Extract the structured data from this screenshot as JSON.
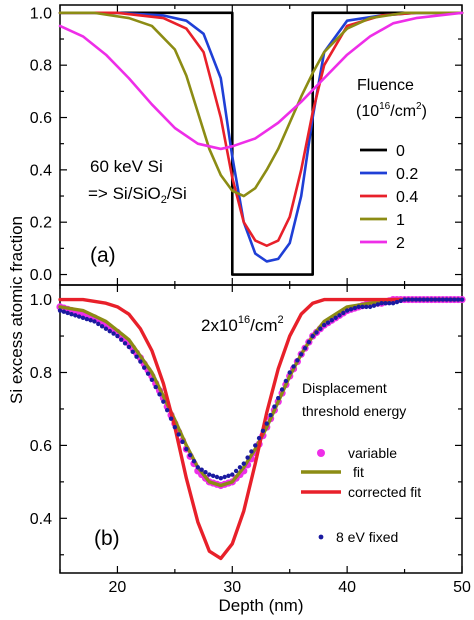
{
  "figure": {
    "ylabel": "Si excess atomic fraction",
    "xlabel": "Depth (nm)",
    "x_ticks": [
      "20",
      "30",
      "40",
      "50"
    ]
  },
  "panel_a": {
    "label": "(a)",
    "annotation_line1": "60 keV Si",
    "annotation_line2": "=> Si/SiO",
    "annotation_line2_sub": "2",
    "annotation_line2_end": "/Si",
    "legend_title": "Fluence",
    "legend_unit_pre": "(10",
    "legend_unit_sup": "16",
    "legend_unit_mid": "/cm",
    "legend_unit_sup2": "2",
    "legend_unit_end": ")",
    "y_ticks": [
      "0.0",
      "0.2",
      "0.4",
      "0.6",
      "0.8",
      "1.0"
    ]
  },
  "panel_b": {
    "label": "(b)",
    "annotation_pre": "2x10",
    "annotation_sup": "16",
    "annotation_mid": "/cm",
    "annotation_sup2": "2",
    "legend_title_line1": "Displacement",
    "legend_title_line2": "threshold energy",
    "y_ticks": [
      "0.4",
      "0.6",
      "0.8",
      "1.0"
    ]
  },
  "colors": {
    "black": "#000000",
    "blue": "#1f3fd6",
    "red": "#e8202a",
    "olive": "#8c8c14",
    "magenta": "#ee2ee8",
    "dots": "#1a1aa0"
  },
  "chart_data": [
    {
      "type": "line",
      "panel": "a",
      "xlim": [
        15,
        50
      ],
      "ylim": [
        -0.04,
        1.03
      ],
      "x_ticks": [
        20,
        30,
        40,
        50
      ],
      "y_ticks": [
        0.0,
        0.2,
        0.4,
        0.6,
        0.8,
        1.0
      ],
      "legend_placement": "right",
      "series": [
        {
          "name": "0",
          "color": "#000000",
          "x": [
            15,
            30.0,
            30.0,
            37.0,
            37.0,
            50
          ],
          "y": [
            1.0,
            1.0,
            0.0,
            0.0,
            1.0,
            1.0
          ]
        },
        {
          "name": "0.2",
          "color": "#1f3fd6",
          "x": [
            15,
            20,
            24,
            26,
            27.5,
            29,
            30,
            31,
            32,
            33,
            34,
            35,
            36,
            37,
            38,
            40,
            43,
            46,
            50
          ],
          "y": [
            1.0,
            1.0,
            0.99,
            0.97,
            0.92,
            0.75,
            0.45,
            0.2,
            0.08,
            0.05,
            0.06,
            0.12,
            0.3,
            0.6,
            0.85,
            0.97,
            0.99,
            1.0,
            1.0
          ]
        },
        {
          "name": "0.4",
          "color": "#e8202a",
          "x": [
            15,
            20,
            24,
            26,
            27.5,
            29,
            30,
            31,
            32,
            33,
            34,
            35,
            36,
            37,
            38,
            40,
            43,
            46,
            50
          ],
          "y": [
            1.0,
            1.0,
            0.98,
            0.94,
            0.85,
            0.6,
            0.37,
            0.2,
            0.13,
            0.11,
            0.13,
            0.22,
            0.4,
            0.62,
            0.8,
            0.95,
            0.99,
            1.0,
            1.0
          ]
        },
        {
          "name": "1",
          "color": "#8c8c14",
          "x": [
            15,
            18,
            21,
            23,
            25,
            26,
            27,
            28,
            29,
            30,
            31,
            32,
            33,
            34,
            35,
            36,
            37,
            38,
            40,
            42,
            45,
            50
          ],
          "y": [
            1.0,
            1.0,
            0.98,
            0.95,
            0.86,
            0.76,
            0.62,
            0.48,
            0.38,
            0.32,
            0.3,
            0.33,
            0.4,
            0.48,
            0.58,
            0.68,
            0.77,
            0.85,
            0.94,
            0.98,
            1.0,
            1.0
          ]
        },
        {
          "name": "2",
          "color": "#ee2ee8",
          "x": [
            15,
            17,
            19,
            21,
            23,
            25,
            27,
            28,
            29,
            30,
            32,
            34,
            36,
            38,
            40,
            42,
            44,
            46,
            48,
            50
          ],
          "y": [
            0.95,
            0.91,
            0.84,
            0.75,
            0.65,
            0.56,
            0.5,
            0.49,
            0.48,
            0.49,
            0.52,
            0.58,
            0.66,
            0.75,
            0.84,
            0.91,
            0.96,
            0.98,
            0.99,
            1.0
          ]
        }
      ]
    },
    {
      "type": "line",
      "panel": "b",
      "xlim": [
        15,
        50
      ],
      "ylim": [
        0.25,
        1.04
      ],
      "x_ticks": [
        20,
        30,
        40,
        50
      ],
      "y_ticks": [
        0.4,
        0.6,
        0.8,
        1.0
      ],
      "legend_placement": "right",
      "series": [
        {
          "name": "variable",
          "kind": "points",
          "color": "#ee2ee8",
          "x": [
            15,
            16,
            17,
            18,
            19,
            20,
            21,
            22,
            23,
            24,
            25,
            26,
            27,
            28,
            29,
            30,
            31,
            32,
            33,
            34,
            35,
            36,
            37,
            38,
            39,
            40,
            41,
            42,
            43,
            44,
            45,
            46,
            47,
            48,
            49,
            50
          ],
          "y": [
            0.98,
            0.97,
            0.96,
            0.95,
            0.93,
            0.91,
            0.88,
            0.84,
            0.79,
            0.73,
            0.66,
            0.59,
            0.53,
            0.5,
            0.49,
            0.5,
            0.53,
            0.58,
            0.65,
            0.72,
            0.79,
            0.85,
            0.9,
            0.93,
            0.95,
            0.97,
            0.98,
            0.99,
            0.99,
            1.0,
            1.0,
            1.0,
            1.0,
            1.0,
            1.0,
            1.0
          ]
        },
        {
          "name": "fit",
          "kind": "line",
          "color": "#8c8c14",
          "x": [
            15,
            17,
            19,
            21,
            23,
            25,
            26,
            27,
            28,
            29,
            30,
            31,
            32,
            33,
            34,
            35,
            36,
            37,
            38,
            40,
            42,
            44,
            46,
            48,
            50
          ],
          "y": [
            0.98,
            0.97,
            0.94,
            0.89,
            0.8,
            0.67,
            0.6,
            0.54,
            0.5,
            0.49,
            0.5,
            0.54,
            0.59,
            0.65,
            0.72,
            0.79,
            0.85,
            0.9,
            0.94,
            0.98,
            0.99,
            1.0,
            1.0,
            1.0,
            1.0
          ]
        },
        {
          "name": "corrected fit",
          "kind": "line",
          "color": "#e8202a",
          "x": [
            15,
            17,
            19,
            20,
            21,
            22,
            23,
            24,
            25,
            26,
            27,
            28,
            29,
            30,
            31,
            32,
            33,
            34,
            35,
            36,
            37,
            38,
            40,
            43,
            46,
            50
          ],
          "y": [
            1.0,
            1.0,
            0.99,
            0.98,
            0.96,
            0.92,
            0.86,
            0.77,
            0.65,
            0.51,
            0.39,
            0.31,
            0.29,
            0.33,
            0.42,
            0.55,
            0.69,
            0.81,
            0.9,
            0.96,
            0.99,
            1.0,
            1.0,
            1.0,
            1.0,
            1.0
          ]
        },
        {
          "name": "8 eV fixed",
          "kind": "points",
          "color": "#1a1aa0",
          "x": [
            15,
            16,
            17,
            18,
            19,
            20,
            21,
            22,
            23,
            24,
            25,
            26,
            27,
            28,
            29,
            30,
            31,
            32,
            33,
            34,
            35,
            36,
            37,
            38,
            39,
            40,
            41,
            42,
            43,
            44,
            45,
            46,
            47,
            48,
            49,
            50
          ],
          "y": [
            0.97,
            0.96,
            0.95,
            0.94,
            0.92,
            0.9,
            0.87,
            0.83,
            0.78,
            0.72,
            0.65,
            0.59,
            0.54,
            0.52,
            0.51,
            0.52,
            0.55,
            0.6,
            0.66,
            0.73,
            0.8,
            0.85,
            0.9,
            0.93,
            0.95,
            0.97,
            0.98,
            0.98,
            0.99,
            0.99,
            1.0,
            1.0,
            1.0,
            1.0,
            1.0,
            1.0
          ]
        }
      ]
    }
  ]
}
